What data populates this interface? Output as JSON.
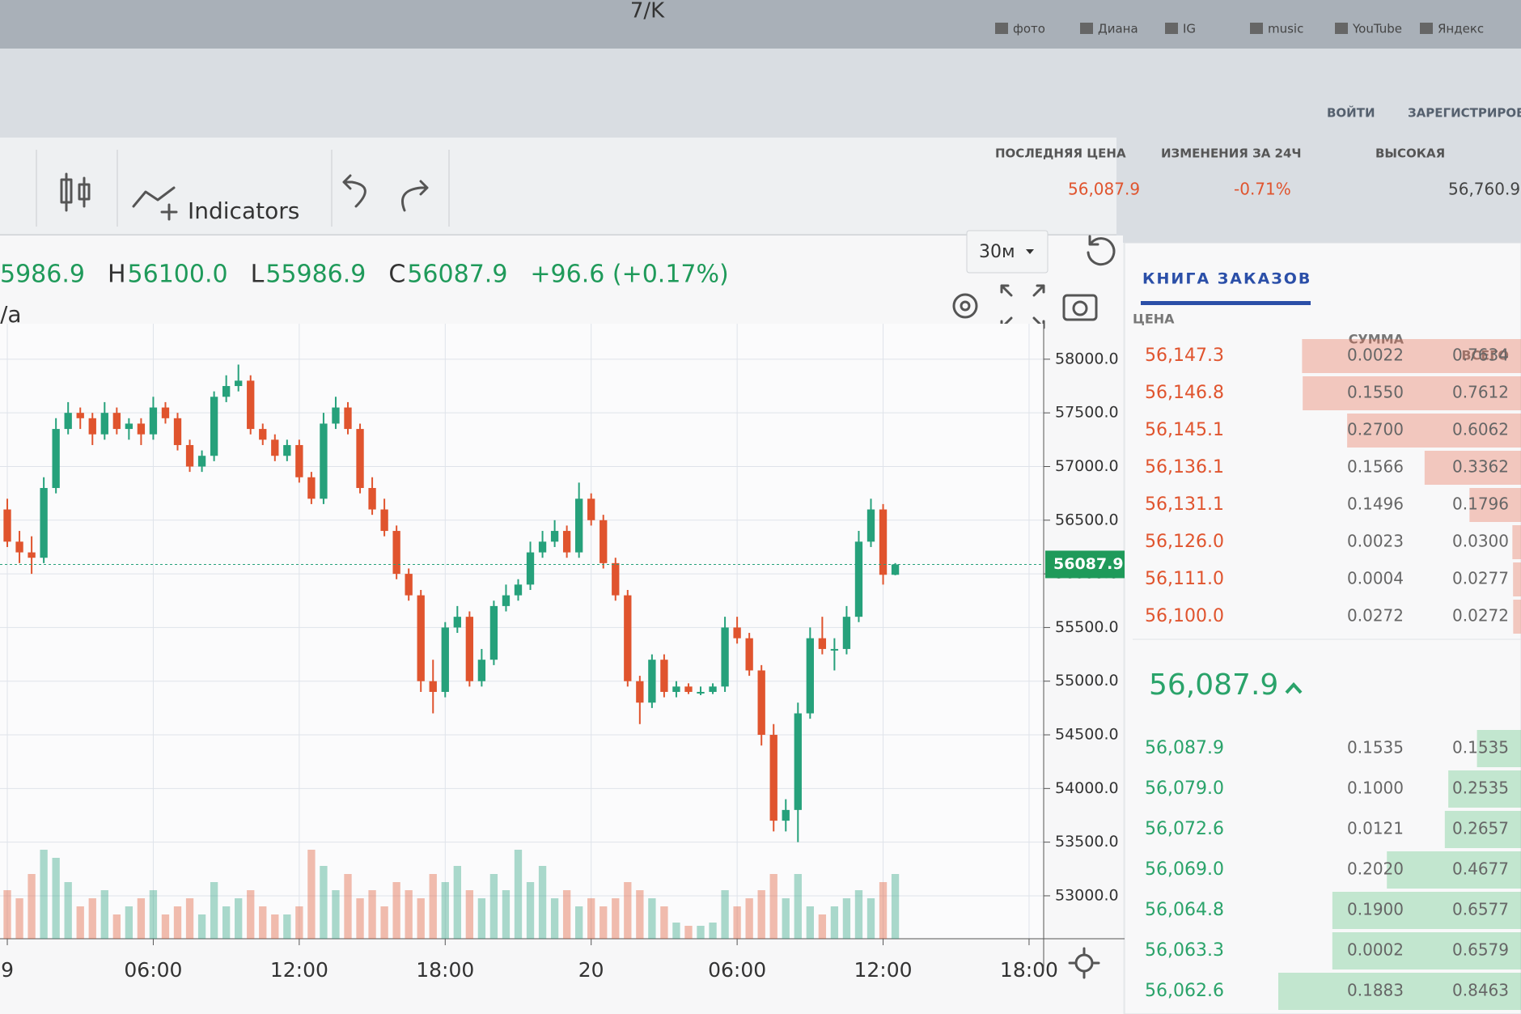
{
  "browser": {
    "title": "7/K",
    "bookmarks": [
      "фото",
      "Диана",
      "IG",
      "music",
      "YouTube",
      "Яндекс"
    ]
  },
  "header": {
    "login": "ВОЙТИ",
    "register": "ЗАРЕГИСТРИРОВАТЬСЯ",
    "stats": [
      {
        "label": "ПОСЛЕДНЯЯ ЦЕНА",
        "value": "56,087.9"
      },
      {
        "label": "ИЗМЕНЕНИЯ ЗА 24Ч",
        "value": "-0.71%"
      },
      {
        "label": "ВЫСОКАЯ",
        "value": "56,760.9"
      }
    ]
  },
  "toolbar": {
    "indicators": "Indicators",
    "interval": "30м"
  },
  "legend": {
    "symbol": "/a",
    "items": [
      {
        "value": "5986.9"
      },
      {
        "key": "H",
        "value": "56100.0"
      },
      {
        "key": "L",
        "value": "55986.9"
      },
      {
        "key": "C",
        "value": "56087.9"
      },
      {
        "value": "+96.6 (+0.17%)"
      }
    ]
  },
  "chart_data": {
    "type": "candlestick",
    "up_color": "#26a17b",
    "down_color": "#e0542e",
    "grid": true,
    "xlim": [
      -0.3,
      42.6
    ],
    "ylim": [
      52600,
      58180
    ],
    "xticks": [
      {
        "value": 0,
        "label": "9"
      },
      {
        "value": 6,
        "label": "06:00"
      },
      {
        "value": 12,
        "label": "12:00"
      },
      {
        "value": 18,
        "label": "18:00"
      },
      {
        "value": 24,
        "label": "20"
      },
      {
        "value": 30,
        "label": "06:00"
      },
      {
        "value": 36,
        "label": "12:00"
      },
      {
        "value": 42,
        "label": "18:00"
      }
    ],
    "yticks": [
      {
        "value": 53000,
        "label": "53000.0"
      },
      {
        "value": 53500,
        "label": "53500.0"
      },
      {
        "value": 54000,
        "label": "54000.0"
      },
      {
        "value": 54500,
        "label": "54500.0"
      },
      {
        "value": 55000,
        "label": "55000.0"
      },
      {
        "value": 55500,
        "label": "55500.0"
      },
      {
        "value": 56000,
        "label": "56000.0"
      },
      {
        "value": 56500,
        "label": "56500.0"
      },
      {
        "value": 57000,
        "label": "57000.0"
      },
      {
        "value": 57500,
        "label": "57500.0"
      },
      {
        "value": 58000,
        "label": "58000.0"
      }
    ],
    "candles": [
      [
        0,
        56600,
        56700,
        56250,
        56300,
        30
      ],
      [
        0.5,
        56300,
        56400,
        56100,
        56200,
        25
      ],
      [
        1,
        56200,
        56350,
        56000,
        56150,
        40
      ],
      [
        1.5,
        56150,
        56900,
        56100,
        56800,
        55
      ],
      [
        2,
        56800,
        57450,
        56750,
        57350,
        50
      ],
      [
        2.5,
        57350,
        57600,
        57300,
        57500,
        35
      ],
      [
        3,
        57500,
        57550,
        57350,
        57450,
        20
      ],
      [
        3.5,
        57450,
        57500,
        57200,
        57300,
        25
      ],
      [
        4,
        57300,
        57600,
        57250,
        57500,
        30
      ],
      [
        4.5,
        57500,
        57550,
        57300,
        57350,
        15
      ],
      [
        5,
        57350,
        57450,
        57250,
        57400,
        20
      ],
      [
        5.5,
        57400,
        57450,
        57200,
        57300,
        25
      ],
      [
        6,
        57300,
        57650,
        57250,
        57550,
        30
      ],
      [
        6.5,
        57550,
        57600,
        57400,
        57450,
        15
      ],
      [
        7,
        57450,
        57500,
        57150,
        57200,
        20
      ],
      [
        7.5,
        57200,
        57250,
        56950,
        57000,
        25
      ],
      [
        8,
        57000,
        57150,
        56950,
        57100,
        15
      ],
      [
        8.5,
        57100,
        57700,
        57050,
        57650,
        35
      ],
      [
        9,
        57650,
        57850,
        57600,
        57750,
        20
      ],
      [
        9.5,
        57750,
        57950,
        57700,
        57800,
        25
      ],
      [
        10,
        57800,
        57850,
        57300,
        57350,
        30
      ],
      [
        10.5,
        57350,
        57400,
        57200,
        57250,
        20
      ],
      [
        11,
        57250,
        57300,
        57050,
        57100,
        15
      ],
      [
        11.5,
        57100,
        57250,
        57050,
        57200,
        15
      ],
      [
        12,
        57200,
        57250,
        56850,
        56900,
        20
      ],
      [
        12.5,
        56900,
        56950,
        56650,
        56700,
        55
      ],
      [
        13,
        56700,
        57500,
        56650,
        57400,
        45
      ],
      [
        13.5,
        57400,
        57650,
        57350,
        57550,
        30
      ],
      [
        14,
        57550,
        57600,
        57300,
        57350,
        40
      ],
      [
        14.5,
        57350,
        57400,
        56750,
        56800,
        25
      ],
      [
        15,
        56800,
        56900,
        56550,
        56600,
        30
      ],
      [
        15.5,
        56600,
        56700,
        56350,
        56400,
        20
      ],
      [
        16,
        56400,
        56450,
        55950,
        56000,
        35
      ],
      [
        16.5,
        56000,
        56050,
        55750,
        55800,
        30
      ],
      [
        17,
        55800,
        55850,
        54900,
        55000,
        25
      ],
      [
        17.5,
        55000,
        55200,
        54700,
        54900,
        40
      ],
      [
        18,
        54900,
        55550,
        54850,
        55500,
        35
      ],
      [
        18.5,
        55500,
        55700,
        55450,
        55600,
        45
      ],
      [
        19,
        55600,
        55650,
        54950,
        55000,
        30
      ],
      [
        19.5,
        55000,
        55300,
        54950,
        55200,
        25
      ],
      [
        20,
        55200,
        55750,
        55150,
        55700,
        40
      ],
      [
        20.5,
        55700,
        55900,
        55650,
        55800,
        30
      ],
      [
        21,
        55800,
        55950,
        55750,
        55900,
        55
      ],
      [
        21.5,
        55900,
        56300,
        55850,
        56200,
        35
      ],
      [
        22,
        56200,
        56400,
        56150,
        56300,
        45
      ],
      [
        22.5,
        56300,
        56500,
        56250,
        56400,
        25
      ],
      [
        23,
        56400,
        56450,
        56150,
        56200,
        30
      ],
      [
        23.5,
        56200,
        56850,
        56150,
        56700,
        20
      ],
      [
        24,
        56700,
        56750,
        56450,
        56500,
        25
      ],
      [
        24.5,
        56500,
        56550,
        56050,
        56100,
        20
      ],
      [
        25,
        56100,
        56150,
        55750,
        55800,
        25
      ],
      [
        25.5,
        55800,
        55850,
        54950,
        55000,
        35
      ],
      [
        26,
        55000,
        55050,
        54600,
        54800,
        30
      ],
      [
        26.5,
        54800,
        55250,
        54750,
        55200,
        25
      ],
      [
        27,
        55200,
        55250,
        54850,
        54900,
        20
      ],
      [
        27.5,
        54900,
        55000,
        54850,
        54950,
        10
      ],
      [
        28,
        54950,
        54980,
        54880,
        54900,
        8
      ],
      [
        28.5,
        54900,
        54950,
        54870,
        54900,
        8
      ],
      [
        29,
        54900,
        54980,
        54880,
        54950,
        10
      ],
      [
        29.5,
        54950,
        55600,
        54900,
        55500,
        30
      ],
      [
        30,
        55500,
        55600,
        55350,
        55400,
        20
      ],
      [
        30.5,
        55400,
        55450,
        55050,
        55100,
        25
      ],
      [
        31,
        55100,
        55150,
        54400,
        54500,
        30
      ],
      [
        31.5,
        54500,
        54600,
        53600,
        53700,
        40
      ],
      [
        32,
        53700,
        53900,
        53600,
        53800,
        25
      ],
      [
        32.5,
        53800,
        54800,
        53500,
        54700,
        40
      ],
      [
        33,
        54700,
        55500,
        54650,
        55400,
        20
      ],
      [
        33.5,
        55400,
        55600,
        55250,
        55300,
        15
      ],
      [
        34,
        55300,
        55400,
        55100,
        55300,
        20
      ],
      [
        34.5,
        55300,
        55700,
        55250,
        55600,
        25
      ],
      [
        35,
        55600,
        56400,
        55550,
        56300,
        30
      ],
      [
        35.5,
        56300,
        56700,
        56250,
        56600,
        25
      ],
      [
        36,
        56600,
        56650,
        55900,
        55991.3,
        35
      ],
      [
        36.5,
        55991.3,
        56100,
        55986.9,
        56087.9,
        40
      ]
    ]
  },
  "order_book": {
    "title": "КНИГА ЗАКАЗОВ",
    "columns": [
      "ЦЕНА",
      "СУММА",
      "ВСЕГО"
    ],
    "asks": [
      [
        "56,147.3",
        "0.0022",
        "0.7634"
      ],
      [
        "56,146.8",
        "0.1550",
        "0.7612"
      ],
      [
        "56,145.1",
        "0.2700",
        "0.6062"
      ],
      [
        "56,136.1",
        "0.1566",
        "0.3362"
      ],
      [
        "56,131.1",
        "0.1496",
        "0.1796"
      ],
      [
        "56,126.0",
        "0.0023",
        "0.0300"
      ],
      [
        "56,111.0",
        "0.0004",
        "0.0277"
      ],
      [
        "56,100.0",
        "0.0272",
        "0.0272"
      ]
    ],
    "mid": "56,087.9",
    "bids": [
      [
        "56,087.9",
        "0.1535",
        "0.1535"
      ],
      [
        "56,079.0",
        "0.1000",
        "0.2535"
      ],
      [
        "56,072.6",
        "0.0121",
        "0.2657"
      ],
      [
        "56,069.0",
        "0.2020",
        "0.4677"
      ],
      [
        "56,064.8",
        "0.1900",
        "0.6577"
      ],
      [
        "56,063.3",
        "0.0002",
        "0.6579"
      ],
      [
        "56,062.6",
        "0.1883",
        "0.8463"
      ]
    ]
  }
}
